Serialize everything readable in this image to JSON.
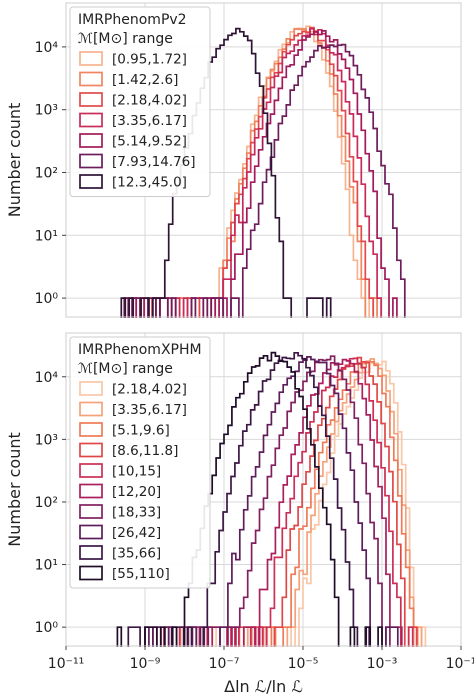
{
  "chart_data": [
    {
      "type": "step-histogram",
      "legend_title": [
        "IMRPhenomPv2",
        "ℳ[M⊙] range"
      ],
      "legend_position": "top-left",
      "ylabel": "Number count",
      "xlabel": "",
      "xscale": "log",
      "yscale": "log",
      "xlim": [
        1e-11,
        0.1
      ],
      "ylim": [
        0.5,
        50000
      ],
      "grid": true,
      "x_tick_labels": [],
      "y_ticks": [
        {
          "value": 1,
          "label": "10⁰"
        },
        {
          "value": 10,
          "label": "10¹"
        },
        {
          "value": 100,
          "label": "10²"
        },
        {
          "value": 1000,
          "label": "10³"
        },
        {
          "value": 10000,
          "label": "10⁴"
        }
      ],
      "series": [
        {
          "name": "[0.95,1.72]",
          "color": "#f6b48f",
          "peak_x": 1.2e-05,
          "peak_y": 20000,
          "sigma_left": 1.15,
          "sigma_right": 0.7,
          "x_min": 3e-10,
          "x_max": 0.0006
        },
        {
          "name": "[1.42,2.6]",
          "color": "#f0865e",
          "peak_x": 1.3e-05,
          "peak_y": 20000,
          "sigma_left": 1.15,
          "sigma_right": 0.75,
          "x_min": 3e-10,
          "x_max": 0.0008
        },
        {
          "name": "[2.18,4.02]",
          "color": "#e3494a",
          "peak_x": 1.5e-05,
          "peak_y": 19000,
          "sigma_left": 1.15,
          "sigma_right": 0.8,
          "x_min": 3e-10,
          "x_max": 0.001
        },
        {
          "name": "[3.35,6.17]",
          "color": "#c82a59",
          "peak_x": 2e-05,
          "peak_y": 18000,
          "sigma_left": 1.2,
          "sigma_right": 0.85,
          "x_min": 3e-10,
          "x_max": 0.0015
        },
        {
          "name": "[5.14,9.52]",
          "color": "#a11a5b",
          "peak_x": 3e-05,
          "peak_y": 17000,
          "sigma_left": 1.2,
          "sigma_right": 0.9,
          "x_min": 3e-10,
          "x_max": 0.0025
        },
        {
          "name": "[7.93,14.76]",
          "color": "#6d1d5c",
          "peak_x": 6e-05,
          "peak_y": 12000,
          "sigma_left": 1.25,
          "sigma_right": 0.95,
          "x_min": 3e-10,
          "x_max": 0.004
        },
        {
          "name": "[12.3,45.0]",
          "color": "#2e1335",
          "peak_x": 2.5e-07,
          "peak_y": 20000,
          "sigma_left": 1.05,
          "sigma_right": 0.6,
          "x_min": 2e-10,
          "x_max": 6e-05
        }
      ]
    },
    {
      "type": "step-histogram",
      "legend_title": [
        "IMRPhenomXPHM",
        "ℳ[M⊙] range"
      ],
      "legend_position": "top-left",
      "ylabel": "Number count",
      "xlabel": "Δln ℒ/ln ℒ",
      "xscale": "log",
      "yscale": "log",
      "xlim": [
        1e-11,
        0.1
      ],
      "ylim": [
        0.5,
        50000
      ],
      "grid": true,
      "x_tick_labels": [
        {
          "value": 1e-11,
          "label": "10⁻¹¹"
        },
        {
          "value": 1e-09,
          "label": "10⁻⁹"
        },
        {
          "value": 1e-07,
          "label": "10⁻⁷"
        },
        {
          "value": 1e-05,
          "label": "10⁻⁵"
        },
        {
          "value": 0.001,
          "label": "10⁻³"
        },
        {
          "value": 0.1,
          "label": "10⁻¹"
        }
      ],
      "y_ticks": [
        {
          "value": 1,
          "label": "10⁰"
        },
        {
          "value": 10,
          "label": "10¹"
        },
        {
          "value": 100,
          "label": "10²"
        },
        {
          "value": 1000,
          "label": "10³"
        },
        {
          "value": 10000,
          "label": "10⁴"
        }
      ],
      "series": [
        {
          "name": "[2.18,4.02]",
          "color": "#f8c8a8",
          "peak_x": 0.001,
          "peak_y": 18000,
          "sigma_left": 1.1,
          "sigma_right": 0.45,
          "x_min": 1e-08,
          "x_max": 0.01
        },
        {
          "name": "[3.35,6.17]",
          "color": "#f5a27a",
          "peak_x": 0.0007,
          "peak_y": 17000,
          "sigma_left": 1.1,
          "sigma_right": 0.5,
          "x_min": 8e-09,
          "x_max": 0.01
        },
        {
          "name": "[5.1,9.6]",
          "color": "#ef7a57",
          "peak_x": 0.0005,
          "peak_y": 17000,
          "sigma_left": 1.1,
          "sigma_right": 0.55,
          "x_min": 5e-09,
          "x_max": 0.008
        },
        {
          "name": "[8.6,11.8]",
          "color": "#e04848",
          "peak_x": 0.0003,
          "peak_y": 18000,
          "sigma_left": 1.1,
          "sigma_right": 0.6,
          "x_min": 3e-09,
          "x_max": 0.006
        },
        {
          "name": "[10,15]",
          "color": "#cb2f55",
          "peak_x": 0.0002,
          "peak_y": 18000,
          "sigma_left": 1.15,
          "sigma_right": 0.6,
          "x_min": 3e-09,
          "x_max": 0.005
        },
        {
          "name": "[12,20]",
          "color": "#aa1f5c",
          "peak_x": 0.00012,
          "peak_y": 18000,
          "sigma_left": 1.15,
          "sigma_right": 0.65,
          "x_min": 2e-09,
          "x_max": 0.004
        },
        {
          "name": "[18,33]",
          "color": "#80205e",
          "peak_x": 5e-05,
          "peak_y": 19000,
          "sigma_left": 1.2,
          "sigma_right": 0.7,
          "x_min": 1e-09,
          "x_max": 0.003
        },
        {
          "name": "[26,42]",
          "color": "#5c1d5a",
          "peak_x": 2e-05,
          "peak_y": 20000,
          "sigma_left": 1.2,
          "sigma_right": 0.75,
          "x_min": 5e-10,
          "x_max": 0.002
        },
        {
          "name": "[35,66]",
          "color": "#3b1744",
          "peak_x": 6e-06,
          "peak_y": 22000,
          "sigma_left": 1.2,
          "sigma_right": 0.8,
          "x_min": 3e-10,
          "x_max": 0.0015
        },
        {
          "name": "[55,110]",
          "color": "#1f0d27",
          "peak_x": 2e-06,
          "peak_y": 22000,
          "sigma_left": 1.2,
          "sigma_right": 0.85,
          "x_min": 2e-10,
          "x_max": 0.001
        }
      ]
    }
  ]
}
